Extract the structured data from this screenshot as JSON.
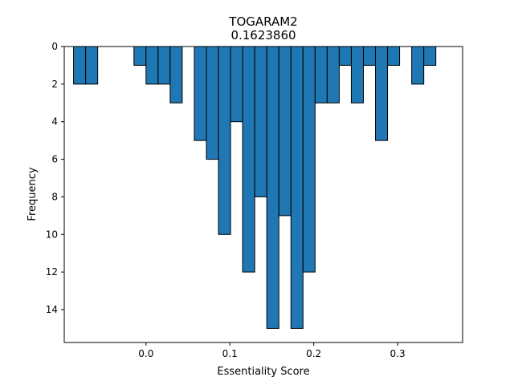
{
  "chart_data": {
    "type": "bar",
    "title": "TOGARAM2",
    "subtitle": "0.1623860",
    "xlabel": "Essentiality Score",
    "ylabel": "Frequency",
    "y_inverted": true,
    "xlim": [
      -0.0975,
      0.3775
    ],
    "ylim": [
      0,
      15.75
    ],
    "x_ticks": [
      0.0,
      0.1,
      0.2,
      0.3
    ],
    "x_tick_labels": [
      "0.0",
      "0.1",
      "0.2",
      "0.3"
    ],
    "y_ticks": [
      0,
      2,
      4,
      6,
      8,
      10,
      12,
      14
    ],
    "y_tick_labels": [
      "0",
      "2",
      "4",
      "6",
      "8",
      "10",
      "12",
      "14"
    ],
    "bin_width": 0.0144,
    "bar_color": "#1f77b4",
    "edge_color": "#000000",
    "bins": [
      {
        "x": -0.0792,
        "count": 2
      },
      {
        "x": -0.0648,
        "count": 2
      },
      {
        "x": -0.0504,
        "count": 0
      },
      {
        "x": -0.036,
        "count": 0
      },
      {
        "x": -0.0216,
        "count": 0
      },
      {
        "x": -0.0072,
        "count": 1
      },
      {
        "x": 0.0072,
        "count": 2
      },
      {
        "x": 0.0216,
        "count": 2
      },
      {
        "x": 0.036,
        "count": 3
      },
      {
        "x": 0.0504,
        "count": 0
      },
      {
        "x": 0.0648,
        "count": 5
      },
      {
        "x": 0.0792,
        "count": 6
      },
      {
        "x": 0.0936,
        "count": 10
      },
      {
        "x": 0.108,
        "count": 4
      },
      {
        "x": 0.1224,
        "count": 12
      },
      {
        "x": 0.1368,
        "count": 8
      },
      {
        "x": 0.1512,
        "count": 15
      },
      {
        "x": 0.1656,
        "count": 9
      },
      {
        "x": 0.18,
        "count": 15
      },
      {
        "x": 0.1944,
        "count": 12
      },
      {
        "x": 0.2088,
        "count": 3
      },
      {
        "x": 0.2232,
        "count": 3
      },
      {
        "x": 0.2376,
        "count": 1
      },
      {
        "x": 0.252,
        "count": 3
      },
      {
        "x": 0.2664,
        "count": 1
      },
      {
        "x": 0.2808,
        "count": 5
      },
      {
        "x": 0.2952,
        "count": 1
      },
      {
        "x": 0.3096,
        "count": 0
      },
      {
        "x": 0.324,
        "count": 2
      },
      {
        "x": 0.3384,
        "count": 1
      }
    ]
  }
}
